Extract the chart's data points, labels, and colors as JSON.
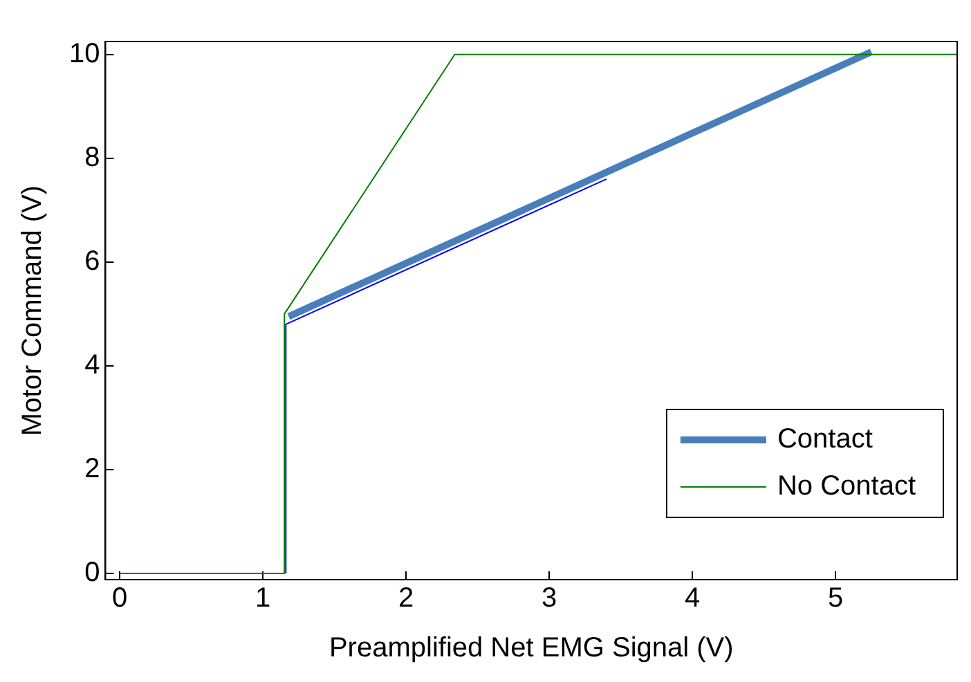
{
  "chart_data": {
    "type": "line",
    "xlabel": "Preamplified Net EMG Signal (V)",
    "ylabel": "Motor Command (V)",
    "xlim": [
      -0.1,
      5.85
    ],
    "ylim": [
      -0.12,
      10.25
    ],
    "xticks": [
      0,
      1,
      2,
      3,
      4,
      5
    ],
    "yticks": [
      0,
      2,
      4,
      6,
      8,
      10
    ],
    "grid": false,
    "legend": "bottom right",
    "marker": "none",
    "line_style": "solid",
    "series": [
      {
        "color": "#0000ff",
        "x": [
          1.16,
          1.16,
          3.4
        ],
        "values": [
          0,
          4.8,
          7.6
        ]
      },
      {
        "name": "Contact",
        "color": "#4a7ebb",
        "x": [
          1.18,
          5.25
        ],
        "values": [
          4.95,
          10.05
        ]
      },
      {
        "name": "No Contact",
        "color": "#008000",
        "x": [
          0,
          1.15,
          1.15,
          2.34,
          5.85
        ],
        "values": [
          0,
          0,
          5,
          10,
          10
        ]
      }
    ]
  }
}
